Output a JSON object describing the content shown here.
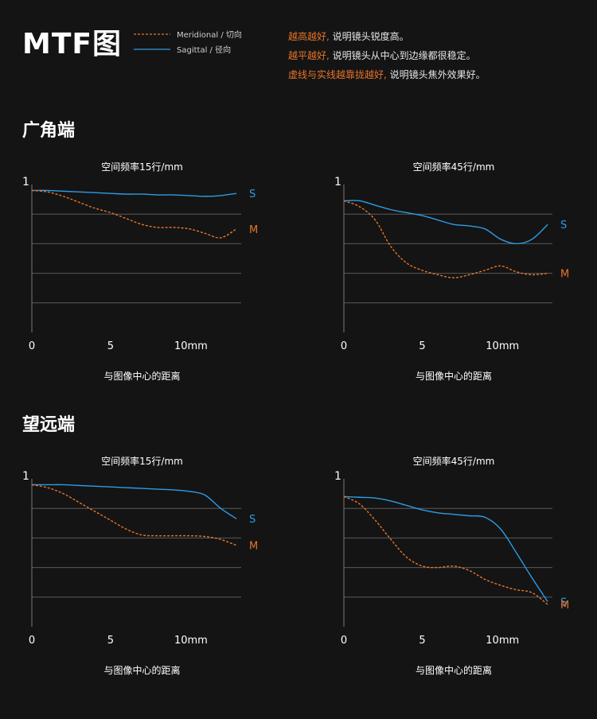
{
  "header": {
    "title": "MTF图",
    "legend": [
      {
        "label": "Meridional / 切向",
        "style": "dashed",
        "color": "#e8742a"
      },
      {
        "label": "Sagittal / 径向",
        "style": "solid",
        "color": "#2e9be6"
      }
    ],
    "notes": [
      {
        "highlight": "越高越好,",
        "text": " 说明镜头锐度高。"
      },
      {
        "highlight": "越平越好,",
        "text": " 说明镜头从中心到边缘都很稳定。"
      },
      {
        "highlight": "虚线与实线越靠拢越好,",
        "text": " 说明镜头焦外效果好。"
      }
    ]
  },
  "sections": [
    {
      "label": "广角端"
    },
    {
      "label": "望远端"
    }
  ],
  "colors": {
    "meridional": "#e8742a",
    "sagittal": "#2e9be6",
    "grid": "#5a5a5a",
    "axis": "#777777"
  },
  "chart_data": [
    {
      "type": "line",
      "section": "广角端",
      "title": "空间频率15行/mm",
      "xlabel": "与图像中心的距离",
      "ylabel": "",
      "x_ticks": [
        "0",
        "5",
        "10mm"
      ],
      "y_ticks": [
        "1"
      ],
      "xlim": [
        0,
        13.3
      ],
      "ylim": [
        0,
        1
      ],
      "series": [
        {
          "name": "S",
          "role": "sagittal",
          "x": [
            0,
            1,
            2,
            3,
            4,
            5,
            6,
            7,
            8,
            9,
            10,
            11,
            12,
            13
          ],
          "values": [
            0.96,
            0.96,
            0.955,
            0.95,
            0.945,
            0.94,
            0.935,
            0.935,
            0.93,
            0.93,
            0.925,
            0.92,
            0.925,
            0.94
          ]
        },
        {
          "name": "M",
          "role": "meridional",
          "x": [
            0,
            1,
            2,
            3,
            4,
            5,
            6,
            7,
            8,
            9,
            10,
            11,
            12,
            13
          ],
          "values": [
            0.96,
            0.95,
            0.92,
            0.88,
            0.84,
            0.81,
            0.77,
            0.73,
            0.71,
            0.71,
            0.7,
            0.67,
            0.64,
            0.7
          ]
        }
      ]
    },
    {
      "type": "line",
      "section": "广角端",
      "title": "空间频率45行/mm",
      "xlabel": "与图像中心的距离",
      "ylabel": "",
      "x_ticks": [
        "0",
        "5",
        "10mm"
      ],
      "y_ticks": [
        "1"
      ],
      "xlim": [
        0,
        13.3
      ],
      "ylim": [
        0,
        1
      ],
      "series": [
        {
          "name": "S",
          "role": "sagittal",
          "x": [
            0,
            1,
            2,
            3,
            4,
            5,
            6,
            7,
            8,
            9,
            10,
            11,
            12,
            13
          ],
          "values": [
            0.89,
            0.89,
            0.86,
            0.83,
            0.81,
            0.79,
            0.76,
            0.73,
            0.72,
            0.7,
            0.63,
            0.6,
            0.63,
            0.73
          ]
        },
        {
          "name": "M",
          "role": "meridional",
          "x": [
            0,
            1,
            2,
            3,
            4,
            5,
            6,
            7,
            8,
            9,
            10,
            11,
            12,
            13
          ],
          "values": [
            0.89,
            0.85,
            0.76,
            0.58,
            0.47,
            0.42,
            0.39,
            0.37,
            0.39,
            0.42,
            0.45,
            0.41,
            0.39,
            0.4
          ]
        }
      ]
    },
    {
      "type": "line",
      "section": "望远端",
      "title": "空间频率15行/mm",
      "xlabel": "与图像中心的距离",
      "ylabel": "",
      "x_ticks": [
        "0",
        "5",
        "10mm"
      ],
      "y_ticks": [
        "1"
      ],
      "xlim": [
        0,
        13.3
      ],
      "ylim": [
        0,
        1
      ],
      "series": [
        {
          "name": "S",
          "role": "sagittal",
          "x": [
            0,
            1,
            2,
            3,
            4,
            5,
            6,
            7,
            8,
            9,
            10,
            11,
            12,
            13
          ],
          "values": [
            0.96,
            0.96,
            0.96,
            0.955,
            0.95,
            0.945,
            0.94,
            0.935,
            0.93,
            0.925,
            0.915,
            0.89,
            0.8,
            0.73
          ]
        },
        {
          "name": "M",
          "role": "meridional",
          "x": [
            0,
            1,
            2,
            3,
            4,
            5,
            6,
            7,
            8,
            9,
            10,
            11,
            12,
            13
          ],
          "values": [
            0.96,
            0.94,
            0.9,
            0.84,
            0.78,
            0.72,
            0.66,
            0.62,
            0.615,
            0.615,
            0.615,
            0.61,
            0.59,
            0.55
          ]
        }
      ]
    },
    {
      "type": "line",
      "section": "望远端",
      "title": "空间频率45行/mm",
      "xlabel": "与图像中心的距离",
      "ylabel": "",
      "x_ticks": [
        "0",
        "5",
        "10mm"
      ],
      "y_ticks": [
        "1"
      ],
      "xlim": [
        0,
        13.3
      ],
      "ylim": [
        0,
        1
      ],
      "series": [
        {
          "name": "S",
          "role": "sagittal",
          "x": [
            0,
            1,
            2,
            3,
            4,
            5,
            6,
            7,
            8,
            9,
            10,
            11,
            12,
            13
          ],
          "values": [
            0.88,
            0.875,
            0.87,
            0.85,
            0.82,
            0.79,
            0.77,
            0.76,
            0.75,
            0.74,
            0.66,
            0.5,
            0.33,
            0.17
          ]
        },
        {
          "name": "M",
          "role": "meridional",
          "x": [
            0,
            1,
            2,
            3,
            4,
            5,
            6,
            7,
            8,
            9,
            10,
            11,
            12,
            13
          ],
          "values": [
            0.88,
            0.83,
            0.72,
            0.59,
            0.47,
            0.41,
            0.4,
            0.41,
            0.38,
            0.32,
            0.28,
            0.25,
            0.23,
            0.15
          ]
        }
      ]
    }
  ]
}
